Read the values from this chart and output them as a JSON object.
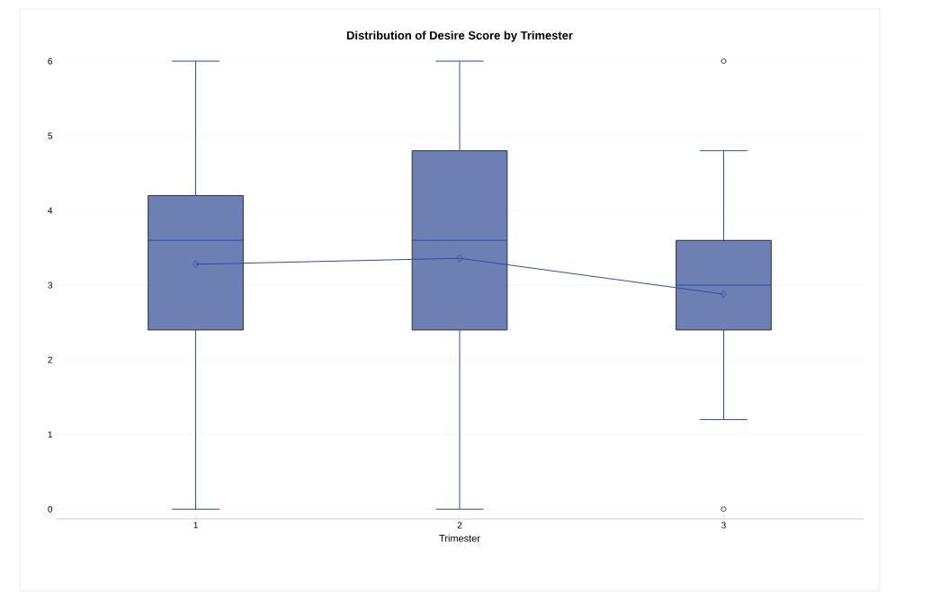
{
  "chart_data": {
    "type": "box",
    "title": "Distribution of Desire Score by Trimester",
    "xlabel": "Trimester",
    "categories": [
      "1",
      "2",
      "3"
    ],
    "ylim": [
      -0.13,
      6
    ],
    "yticks": [
      0,
      1,
      2,
      3,
      4,
      5,
      6
    ],
    "grid": "y",
    "color": "#6e7fb4",
    "boxes": [
      {
        "low": 0,
        "q1": 2.4,
        "median": 3.6,
        "q3": 4.2,
        "high": 6
      },
      {
        "low": 0,
        "q1": 2.4,
        "median": 3.6,
        "q3": 4.8,
        "high": 6
      },
      {
        "low": 1.2,
        "q1": 2.4,
        "median": 3.0,
        "q3": 3.6,
        "high": 4.8,
        "outliers": [
          6,
          0
        ]
      }
    ],
    "series": [
      {
        "type": "line",
        "color": "#2a4fa8",
        "marker": "diamond",
        "values": [
          3.28,
          3.36,
          2.88
        ]
      }
    ]
  }
}
